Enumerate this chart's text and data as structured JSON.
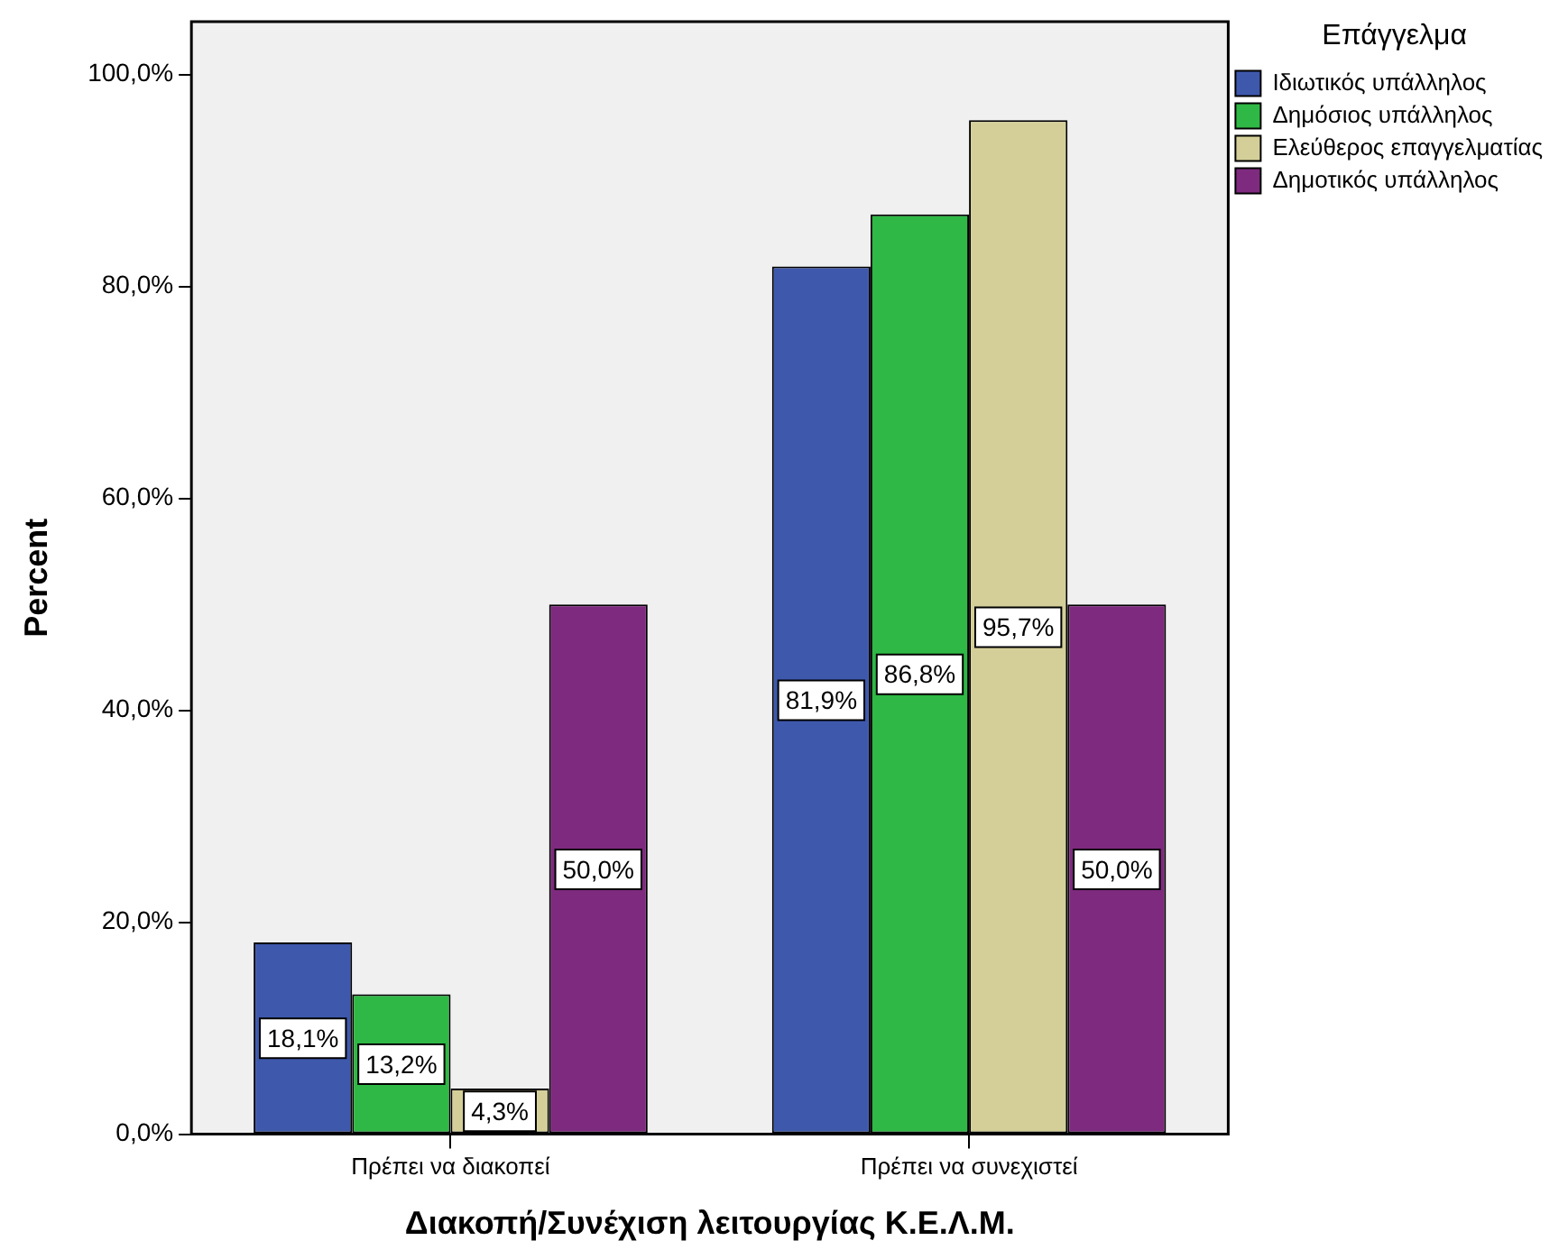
{
  "chart_data": {
    "type": "bar",
    "xlabel": "Διακοπή/Συνέχιση λειτουργίας Κ.Ε.Λ.Μ.",
    "ylabel": "Percent",
    "legend_title": "Επάγγελμα",
    "legend": "top right",
    "categories": [
      "Πρέπει να διακοπεί",
      "Πρέπει να συνεχιστεί"
    ],
    "series": [
      {
        "name": "Ιδιωτικός υπάλληλος",
        "color": "#3e58ac",
        "values": [
          18.1,
          81.9
        ],
        "value_labels": [
          "18,1%",
          "81,9%"
        ]
      },
      {
        "name": "Δημόσιος υπάλληλος",
        "color": "#2fb845",
        "values": [
          13.2,
          86.8
        ],
        "value_labels": [
          "13,2%",
          "86,8%"
        ]
      },
      {
        "name": "Ελεύθερος επαγγελματίας",
        "color": "#d4cf98",
        "values": [
          4.3,
          95.7
        ],
        "value_labels": [
          "4,3%",
          "95,7%"
        ]
      },
      {
        "name": "Δημοτικός υπάλληλος",
        "color": "#7e2a7e",
        "values": [
          50.0,
          50.0
        ],
        "value_labels": [
          "50,0%",
          "50,0%"
        ]
      }
    ],
    "ylim": [
      0,
      105
    ],
    "yticks": [
      {
        "value": 0,
        "label": "0,0%"
      },
      {
        "value": 20,
        "label": "20,0%"
      },
      {
        "value": 40,
        "label": "40,0%"
      },
      {
        "value": 60,
        "label": "60,0%"
      },
      {
        "value": 80,
        "label": "80,0%"
      },
      {
        "value": 100,
        "label": "100,0%"
      }
    ],
    "grid": false
  }
}
